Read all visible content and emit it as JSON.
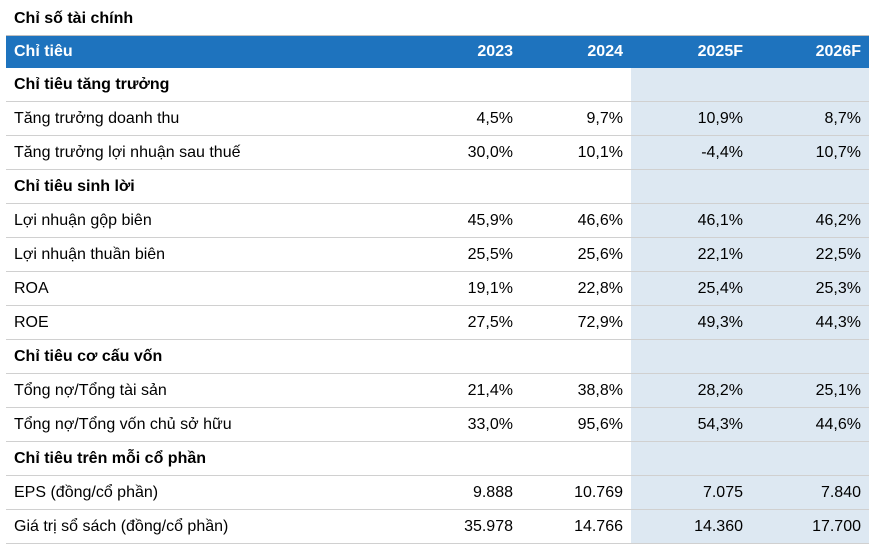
{
  "title": "Chỉ số tài chính",
  "header": {
    "label": "Chỉ tiêu",
    "years": [
      "2023",
      "2024",
      "2025F",
      "2026F"
    ]
  },
  "sections": [
    {
      "name": "Chỉ tiêu tăng trưởng",
      "rows": [
        {
          "label": "Tăng trưởng doanh thu",
          "values": [
            "4,5%",
            "9,7%",
            "10,9%",
            "8,7%"
          ]
        },
        {
          "label": "Tăng trưởng lợi nhuận sau thuế",
          "values": [
            "30,0%",
            "10,1%",
            "-4,4%",
            "10,7%"
          ]
        }
      ]
    },
    {
      "name": "Chỉ tiêu sinh lời",
      "rows": [
        {
          "label": "Lợi nhuận gộp biên",
          "values": [
            "45,9%",
            "46,6%",
            "46,1%",
            "46,2%"
          ]
        },
        {
          "label": "Lợi nhuận thuần biên",
          "values": [
            "25,5%",
            "25,6%",
            "22,1%",
            "22,5%"
          ]
        },
        {
          "label": "ROA",
          "values": [
            "19,1%",
            "22,8%",
            "25,4%",
            "25,3%"
          ]
        },
        {
          "label": "ROE",
          "values": [
            "27,5%",
            "72,9%",
            "49,3%",
            "44,3%"
          ]
        }
      ]
    },
    {
      "name": "Chỉ tiêu cơ cấu vốn",
      "rows": [
        {
          "label": "Tổng nợ/Tổng tài sản",
          "values": [
            "21,4%",
            "38,8%",
            "28,2%",
            "25,1%"
          ]
        },
        {
          "label": "Tổng nợ/Tổng vốn chủ sở hữu",
          "values": [
            "33,0%",
            "95,6%",
            "54,3%",
            "44,6%"
          ]
        }
      ]
    },
    {
      "name": "Chỉ tiêu trên mỗi cổ phần",
      "rows": [
        {
          "label": "EPS (đồng/cổ phần)",
          "values": [
            "9.888",
            "10.769",
            "7.075",
            "7.840"
          ]
        },
        {
          "label": "Giá trị sổ sách (đồng/cổ phần)",
          "values": [
            "35.978",
            "14.766",
            "14.360",
            "17.700"
          ]
        }
      ]
    }
  ],
  "colors": {
    "header_bg": "#1e73be",
    "forecast_bg": "#dde8f2"
  }
}
